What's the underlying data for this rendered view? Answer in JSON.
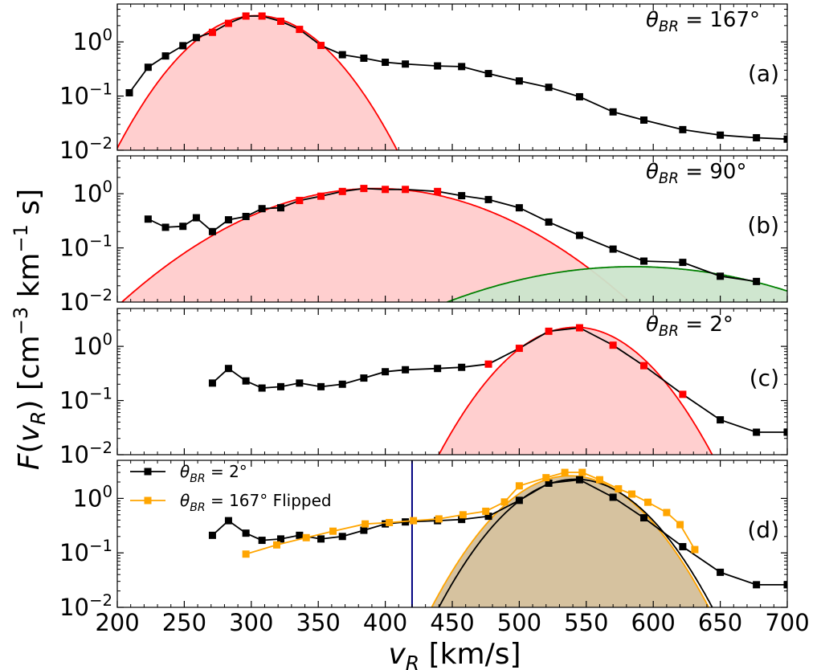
{
  "figure": {
    "ylabel": "F(v_R) [cm^-3 km^-1 s]",
    "xlabel": "v_R [km/s]",
    "x_ticks": [
      200,
      250,
      300,
      350,
      400,
      450,
      500,
      550,
      600,
      650,
      700
    ],
    "xlim": [
      200,
      700
    ],
    "ylim": [
      0.01,
      5
    ]
  },
  "chart_data": [
    {
      "type": "line",
      "panel_label": "(a)",
      "annotation": "θ_BR = 167°",
      "yscale": "log",
      "xlim": [
        200,
        700
      ],
      "ylim": [
        0.01,
        5
      ],
      "y_ticks": [
        "10^0",
        "10^-1",
        "10^-2"
      ],
      "series": [
        {
          "name": "data",
          "color": "#000000",
          "x": [
            209,
            223,
            236,
            249,
            259,
            271,
            283,
            296,
            308,
            322,
            336,
            352,
            368,
            384,
            400,
            415,
            439,
            457,
            477,
            500,
            522,
            545,
            570,
            593,
            622,
            650,
            677,
            700
          ],
          "y": [
            0.115,
            0.34,
            0.55,
            0.85,
            1.2,
            1.5,
            2.2,
            3.0,
            3.0,
            2.4,
            1.7,
            0.86,
            0.58,
            0.5,
            0.42,
            0.39,
            0.36,
            0.35,
            0.26,
            0.19,
            0.145,
            0.097,
            0.051,
            0.036,
            0.024,
            0.019,
            0.017,
            0.016
          ],
          "highlight_indices": [
            5,
            6,
            7,
            8,
            9,
            10,
            11
          ]
        }
      ],
      "fits": [
        {
          "color": "#ff0000",
          "fill": "#ffcccc",
          "peak_x": 304,
          "peak_y": 3.05,
          "sigma": 31
        }
      ]
    },
    {
      "type": "line",
      "panel_label": "(b)",
      "annotation": "θ_BR = 90°",
      "yscale": "log",
      "xlim": [
        200,
        700
      ],
      "ylim": [
        0.01,
        5
      ],
      "y_ticks": [
        "10^0",
        "10^-1",
        "10^-2"
      ],
      "series": [
        {
          "name": "data",
          "color": "#000000",
          "x": [
            223,
            236,
            249,
            259,
            271,
            283,
            296,
            308,
            322,
            336,
            352,
            368,
            384,
            400,
            415,
            439,
            457,
            477,
            500,
            522,
            545,
            570,
            593,
            622,
            650,
            677
          ],
          "y": [
            0.34,
            0.24,
            0.25,
            0.36,
            0.2,
            0.33,
            0.38,
            0.53,
            0.55,
            0.75,
            0.9,
            1.1,
            1.25,
            1.2,
            1.2,
            1.1,
            0.92,
            0.78,
            0.55,
            0.3,
            0.17,
            0.095,
            0.057,
            0.054,
            0.03,
            0.024
          ],
          "highlight_indices": [
            9,
            10,
            11,
            12,
            13,
            14,
            15
          ]
        }
      ],
      "fits": [
        {
          "color": "#ff0000",
          "fill": "#ffcccc",
          "peak_x": 393,
          "peak_y": 1.25,
          "sigma": 61
        },
        {
          "color": "#008000",
          "fill": "#cce5cc",
          "peak_x": 585,
          "peak_y": 0.045,
          "sigma": 80
        }
      ]
    },
    {
      "type": "line",
      "panel_label": "(c)",
      "annotation": "θ_BR = 2°",
      "yscale": "log",
      "xlim": [
        200,
        700
      ],
      "ylim": [
        0.01,
        5
      ],
      "y_ticks": [
        "10^0",
        "10^-1",
        "10^-2"
      ],
      "series": [
        {
          "name": "data",
          "color": "#000000",
          "x": [
            271,
            283,
            296,
            308,
            322,
            336,
            352,
            368,
            384,
            400,
            415,
            439,
            457,
            477,
            500,
            522,
            545,
            570,
            593,
            622,
            650,
            677,
            700
          ],
          "y": [
            0.21,
            0.39,
            0.23,
            0.17,
            0.18,
            0.21,
            0.18,
            0.2,
            0.26,
            0.34,
            0.37,
            0.39,
            0.41,
            0.47,
            0.92,
            1.9,
            2.2,
            1.05,
            0.44,
            0.13,
            0.044,
            0.026,
            0.026
          ],
          "highlight_indices": [
            13,
            14,
            15,
            16,
            17,
            18,
            19
          ]
        }
      ],
      "fits": [
        {
          "color": "#ff0000",
          "fill": "#ffcccc",
          "peak_x": 542,
          "peak_y": 2.25,
          "sigma": 31
        }
      ]
    },
    {
      "type": "line",
      "panel_label": "(d)",
      "annotation": "",
      "yscale": "log",
      "xlim": [
        200,
        700
      ],
      "ylim": [
        0.01,
        5
      ],
      "y_ticks": [
        "10^0",
        "10^-1",
        "10^-2"
      ],
      "vline_x": 420,
      "vline_color": "#000080",
      "legend": [
        {
          "label": "θ_BR = 2°",
          "color": "#000000"
        },
        {
          "label": "θ_BR = 167° Flipped",
          "color": "#ffa500"
        }
      ],
      "series": [
        {
          "name": "θ_BR = 2°",
          "color": "#000000",
          "x": [
            271,
            283,
            296,
            308,
            322,
            336,
            352,
            368,
            384,
            400,
            415,
            439,
            457,
            477,
            500,
            522,
            545,
            570,
            593,
            622,
            650,
            677,
            700
          ],
          "y": [
            0.21,
            0.39,
            0.23,
            0.17,
            0.18,
            0.21,
            0.18,
            0.2,
            0.26,
            0.34,
            0.37,
            0.39,
            0.41,
            0.47,
            0.92,
            1.9,
            2.2,
            1.05,
            0.44,
            0.13,
            0.044,
            0.026,
            0.026
          ],
          "highlight_indices": []
        },
        {
          "name": "θ_BR = 167° Flipped",
          "color": "#ffa500",
          "x": [
            296,
            319,
            341,
            361,
            385,
            403,
            421,
            440,
            458,
            475,
            489,
            500,
            520,
            534,
            547,
            560,
            574,
            584,
            596,
            610,
            620,
            631
          ],
          "y": [
            0.095,
            0.14,
            0.19,
            0.25,
            0.34,
            0.36,
            0.39,
            0.42,
            0.5,
            0.58,
            0.86,
            1.7,
            2.4,
            3.0,
            3.0,
            2.2,
            1.5,
            1.2,
            0.85,
            0.55,
            0.33,
            0.115
          ],
          "highlight_indices": []
        }
      ],
      "fits": [
        {
          "color": "#ffa500",
          "fill": "#d4bf9a",
          "peak_x": 538,
          "peak_y": 2.6,
          "sigma": 31
        },
        {
          "color": "#000000",
          "fill": "none",
          "peak_x": 542,
          "peak_y": 2.25,
          "sigma": 31
        }
      ]
    }
  ]
}
